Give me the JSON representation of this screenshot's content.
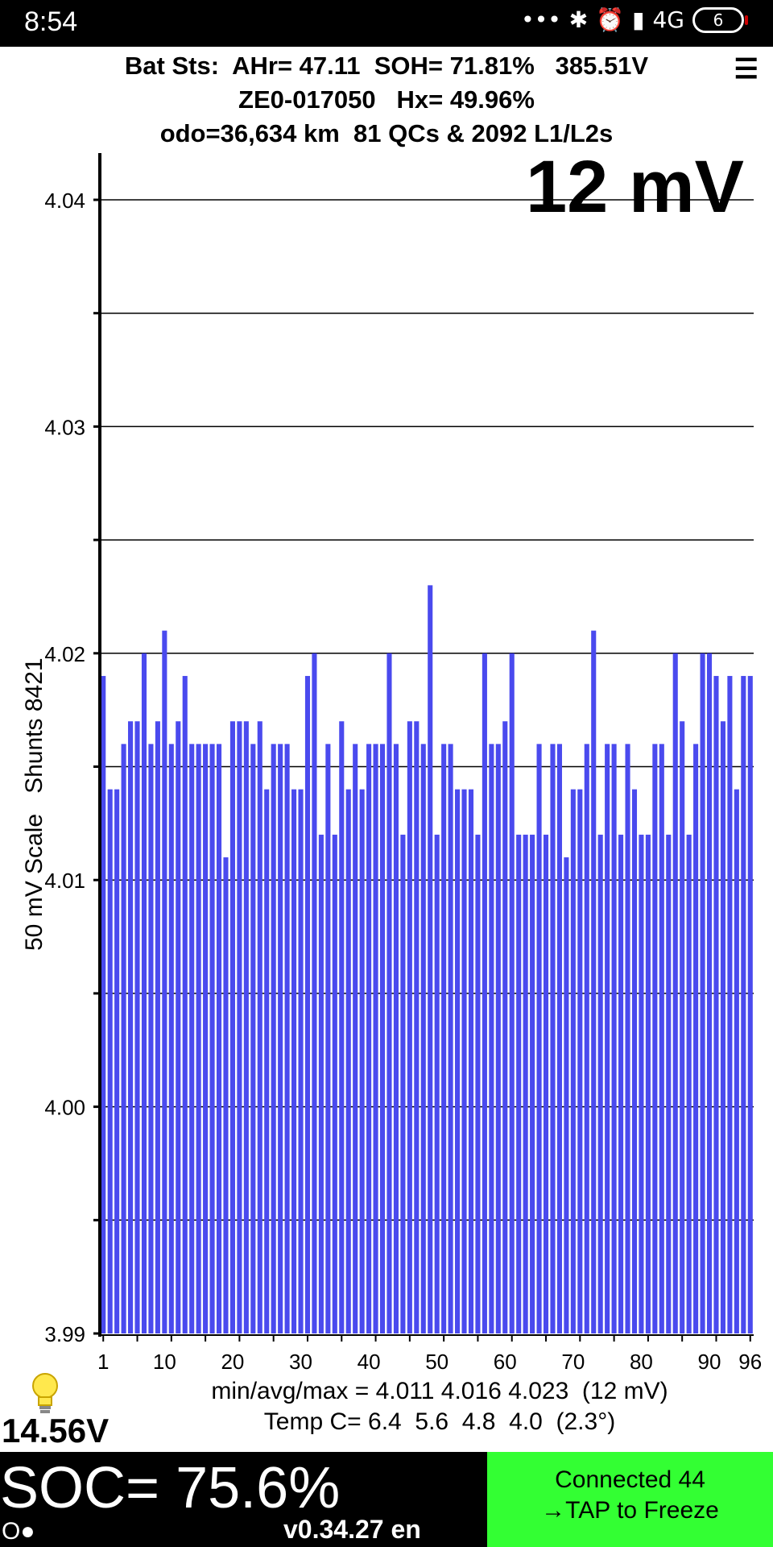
{
  "status_bar": {
    "time": "8:54",
    "network": "4G",
    "battery_level": "6"
  },
  "header": {
    "line1": "Bat Sts:  AHr= 47.11  SOH= 71.81%   385.51V",
    "line2": "ZE0-017050   Hx= 49.96%",
    "line3": "odo=36,634 km  81 QCs & 2092 L1/L2s"
  },
  "spread_label": "12 mV",
  "side_label": "50 mV Scale   Shunts 8421",
  "stats": {
    "minavgmax": "min/avg/max = 4.011 4.016 4.023  (12 mV)",
    "temp": "Temp C= 6.4  5.6  4.8  4.0  (2.3°)"
  },
  "aux_voltage": "14.56V",
  "soc": "SOC= 75.6%",
  "connection_indicator": "O●",
  "version": "v0.34.27 en",
  "connection": {
    "line1": "Connected 44",
    "line2": "→TAP to Freeze"
  },
  "colors": {
    "bar": "#4a4aee",
    "connected_bg": "#33ff33"
  },
  "chart_data": {
    "type": "bar",
    "ylim": [
      3.99,
      4.042
    ],
    "yticks": [
      3.99,
      4.0,
      4.01,
      4.02,
      4.03,
      4.04
    ],
    "ytick_labels": [
      "3.99",
      "4.00",
      "4.01",
      "4.02",
      "4.03",
      "4.04"
    ],
    "minor_gridlines": [
      3.995,
      4.005,
      4.015,
      4.025,
      4.035
    ],
    "xtick_labels": [
      {
        "cell": 1,
        "label": "1"
      },
      {
        "cell": 10,
        "label": "10"
      },
      {
        "cell": 20,
        "label": "20"
      },
      {
        "cell": 30,
        "label": "30"
      },
      {
        "cell": 40,
        "label": "40"
      },
      {
        "cell": 50,
        "label": "50"
      },
      {
        "cell": 60,
        "label": "60"
      },
      {
        "cell": 70,
        "label": "70"
      },
      {
        "cell": 80,
        "label": "80"
      },
      {
        "cell": 90,
        "label": "90"
      },
      {
        "cell": 96,
        "label": "96"
      }
    ],
    "values": [
      4.019,
      4.014,
      4.014,
      4.016,
      4.017,
      4.017,
      4.02,
      4.016,
      4.017,
      4.021,
      4.016,
      4.017,
      4.019,
      4.016,
      4.016,
      4.016,
      4.016,
      4.016,
      4.011,
      4.017,
      4.017,
      4.017,
      4.016,
      4.017,
      4.014,
      4.016,
      4.016,
      4.016,
      4.014,
      4.014,
      4.019,
      4.02,
      4.012,
      4.016,
      4.012,
      4.017,
      4.014,
      4.016,
      4.014,
      4.016,
      4.016,
      4.016,
      4.02,
      4.016,
      4.012,
      4.017,
      4.017,
      4.016,
      4.023,
      4.012,
      4.016,
      4.016,
      4.014,
      4.014,
      4.014,
      4.012,
      4.02,
      4.016,
      4.016,
      4.017,
      4.02,
      4.012,
      4.012,
      4.012,
      4.016,
      4.012,
      4.016,
      4.016,
      4.011,
      4.014,
      4.014,
      4.016,
      4.021,
      4.012,
      4.016,
      4.016,
      4.012,
      4.016,
      4.014,
      4.012,
      4.012,
      4.016,
      4.016,
      4.012,
      4.02,
      4.017,
      4.012,
      4.016,
      4.02,
      4.02,
      4.019,
      4.017,
      4.019,
      4.014,
      4.019,
      4.019
    ]
  }
}
